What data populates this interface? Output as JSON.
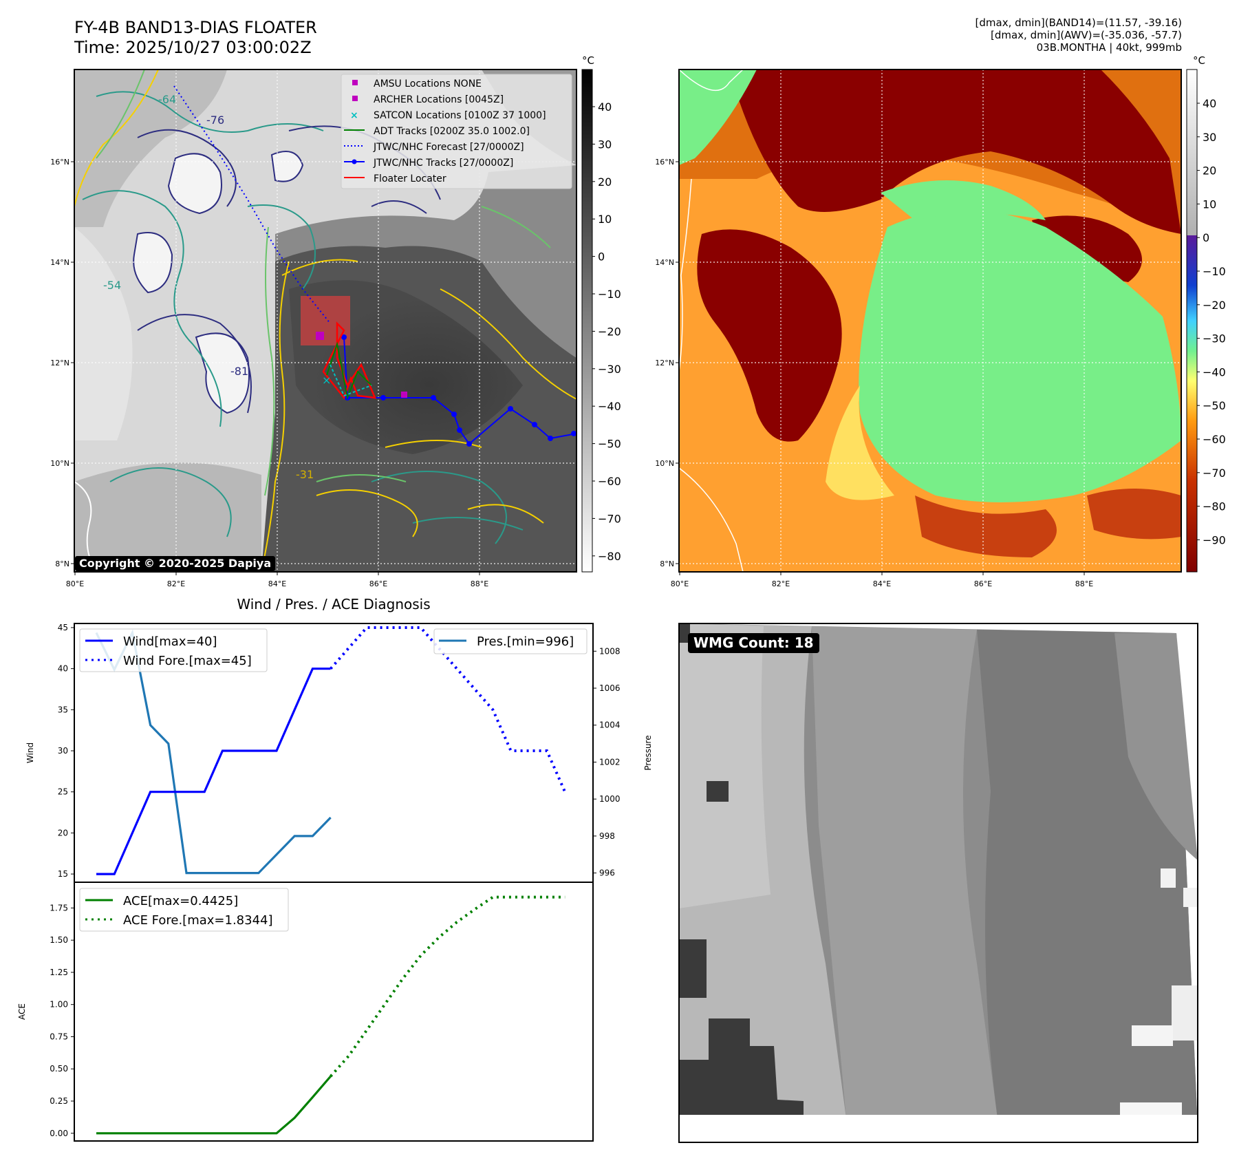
{
  "header": {
    "title_line1": "FY-4B BAND13-DIAS FLOATER",
    "title_line2": "Time: 2025/10/27 03:00:02Z",
    "info_line1": "[dmax, dmin](BAND14)=(11.57, -39.16)",
    "info_line2": "[dmax, dmin](AWV)=(-35.036, -57.7)",
    "info_line3": "03B.MONTHA | 40kt, 999mb"
  },
  "map_ir": {
    "lat_labels": [
      "16°N",
      "14°N",
      "12°N",
      "10°N",
      "8°N"
    ],
    "lon_labels": [
      "80°E",
      "82°E",
      "84°E",
      "86°E",
      "88°E"
    ],
    "contour_labels": [
      "-64",
      "-76",
      "-54",
      "-81",
      "-31"
    ],
    "legend": [
      "AMSU Locations NONE",
      "ARCHER Locations [0045Z]",
      "SATCON Locations [0100Z 37 1000]",
      "ADT Tracks [0200Z 35.0 1002.0]",
      "JTWC/NHC Forecast [27/0000Z]",
      "JTWC/NHC Tracks [27/0000Z]",
      "Floater Locater"
    ],
    "copyright": "Copyright © 2020-2025 Dapiya",
    "colorbar_unit": "°C",
    "colorbar_ticks": [
      "40",
      "30",
      "20",
      "10",
      "0",
      "−10",
      "−20",
      "−30",
      "−40",
      "−50",
      "−60",
      "−70",
      "−80"
    ],
    "colors": {
      "amsu": "#bf00bf",
      "archer": "#bf00bf",
      "satcon": "#00bfbf",
      "adt": "#008000",
      "forecast": "#0000ff",
      "track": "#0000ff",
      "floater": "#ff0000"
    }
  },
  "map_wv": {
    "lat_labels": [
      "16°N",
      "14°N",
      "12°N",
      "10°N",
      "8°N"
    ],
    "lon_labels": [
      "80°E",
      "82°E",
      "84°E",
      "86°E",
      "88°E"
    ],
    "colorbar_unit": "°C",
    "colorbar_ticks": [
      "40",
      "30",
      "20",
      "10",
      "0",
      "−10",
      "−20",
      "−30",
      "−40",
      "−50",
      "−60",
      "−70",
      "−80",
      "−90"
    ]
  },
  "diagnosis": {
    "title": "Wind / Pres. / ACE Diagnosis",
    "wind_ylabel": "Wind",
    "pres_ylabel": "Pressure",
    "ace_ylabel": "ACE",
    "wind_yticks": [
      "45",
      "40",
      "35",
      "30",
      "25",
      "20",
      "15"
    ],
    "pres_yticks": [
      "1008",
      "1006",
      "1004",
      "1002",
      "1000",
      "998",
      "996"
    ],
    "ace_yticks": [
      "1.75",
      "1.50",
      "1.25",
      "1.00",
      "0.75",
      "0.50",
      "0.25",
      "0.00"
    ],
    "legend_wind": "Wind[max=40]",
    "legend_wind_fore": "Wind Fore.[max=45]",
    "legend_pres": "Pres.[min=996]",
    "legend_ace": "ACE[max=0.4425]",
    "legend_ace_fore": "ACE Fore.[max=1.8344]"
  },
  "microwave": {
    "badge": "WMG Count: 18"
  },
  "chart_data": [
    {
      "type": "line",
      "title": "Wind / Pres. / ACE Diagnosis",
      "ylabel": "Wind",
      "ylim": [
        14,
        45.5
      ],
      "series": [
        {
          "name": "Wind[max=40]",
          "x": [
            0,
            1,
            2,
            3,
            4,
            5,
            6,
            7,
            8,
            9,
            10,
            11,
            12,
            13
          ],
          "values": [
            15,
            15,
            20,
            25,
            25,
            25,
            25,
            30,
            30,
            30,
            30,
            35,
            40,
            40
          ],
          "color": "#0000ff",
          "style": "solid"
        },
        {
          "name": "Wind Fore.[max=45]",
          "x": [
            13,
            14,
            15,
            16,
            17,
            18,
            19,
            20,
            21,
            22,
            23,
            24,
            25,
            26
          ],
          "values": [
            40,
            42.5,
            45,
            45,
            45,
            45,
            42.5,
            40,
            37.5,
            35,
            30,
            30,
            30,
            25
          ],
          "color": "#0000ff",
          "style": "dotted"
        }
      ]
    },
    {
      "type": "line",
      "ylabel": "Pressure",
      "ylim": [
        995.5,
        1009.5
      ],
      "series": [
        {
          "name": "Pres.[min=996]",
          "x": [
            0,
            1,
            2,
            3,
            4,
            5,
            6,
            7,
            8,
            9,
            10,
            11,
            12,
            13
          ],
          "values": [
            1009,
            1007,
            1009,
            1004,
            1003,
            996,
            996,
            996,
            996,
            996,
            997,
            998,
            998,
            999
          ],
          "color": "#1f77b4",
          "style": "solid"
        }
      ]
    },
    {
      "type": "line",
      "ylabel": "ACE",
      "ylim": [
        -0.06,
        1.95
      ],
      "series": [
        {
          "name": "ACE[max=0.4425]",
          "x": [
            0,
            1,
            2,
            3,
            4,
            5,
            6,
            7,
            8,
            9,
            10,
            11,
            12,
            13
          ],
          "values": [
            0,
            0,
            0,
            0,
            0,
            0,
            0,
            0,
            0,
            0,
            0,
            0.12,
            0.28,
            0.4425
          ],
          "color": "#008000",
          "style": "solid"
        },
        {
          "name": "ACE Fore.[max=1.8344]",
          "x": [
            13,
            14,
            15,
            16,
            17,
            18,
            19,
            20,
            21,
            22,
            23,
            24,
            25,
            26
          ],
          "values": [
            0.4425,
            0.6,
            0.8,
            1.0,
            1.2,
            1.38,
            1.52,
            1.64,
            1.74,
            1.8344,
            1.8344,
            1.8344,
            1.8344,
            1.8344
          ],
          "color": "#008000",
          "style": "dotted"
        }
      ]
    }
  ]
}
